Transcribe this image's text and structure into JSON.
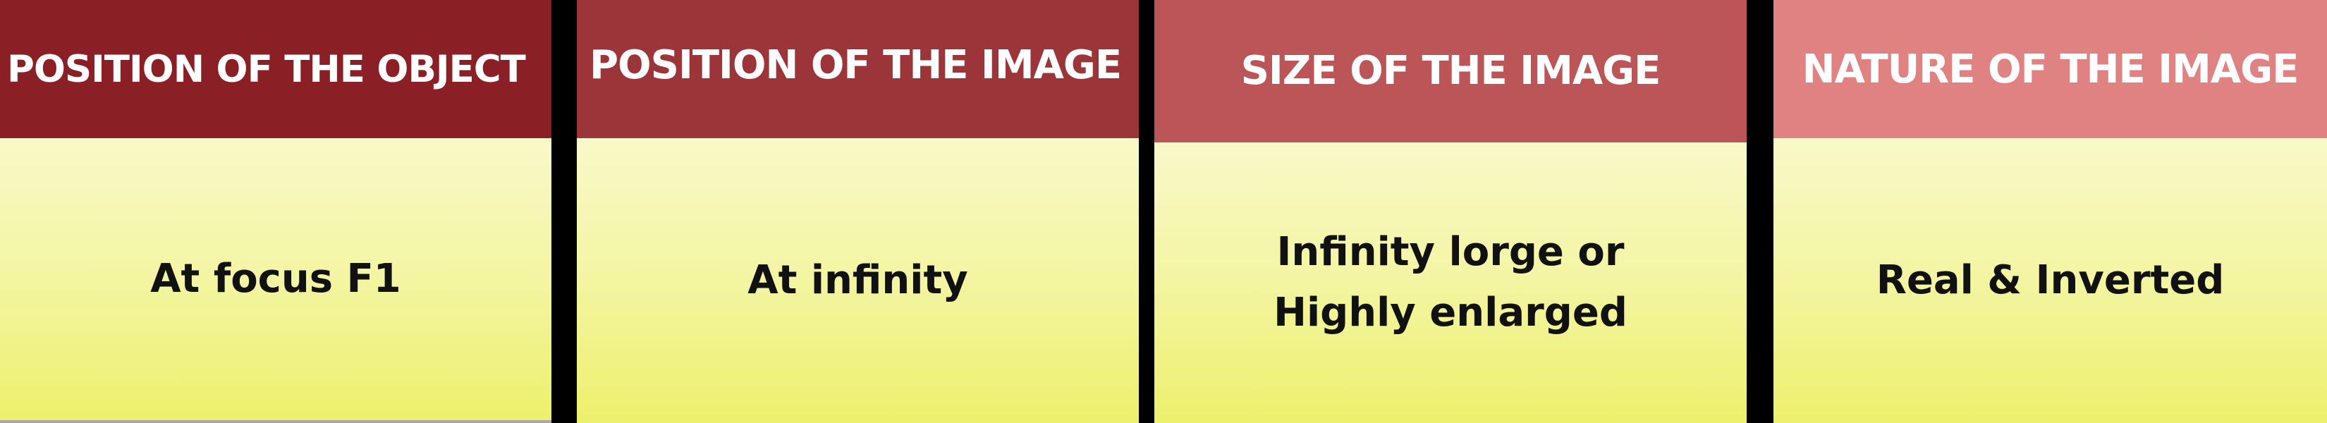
{
  "columns": [
    {
      "header": "POSITION OF THE OBJECT",
      "value": "At focus F1"
    },
    {
      "header": "POSITION OF THE IMAGE",
      "value": "At infinity"
    },
    {
      "header": "SIZE OF THE IMAGE",
      "value": "Infinity lorge or\nHighly enlarged"
    },
    {
      "header": "NATURE OF THE IMAGE",
      "value": "Real & Inverted"
    }
  ],
  "colors": {
    "header_1": "#8b1f26",
    "header_2": "#9c3539",
    "header_3": "#bb5558",
    "header_4": "#e08182",
    "header_text": "#ffffff",
    "body_top": "#f8f9c9",
    "body_bottom": "#edf06c",
    "divider": "#000000",
    "body_text": "#111111"
  }
}
